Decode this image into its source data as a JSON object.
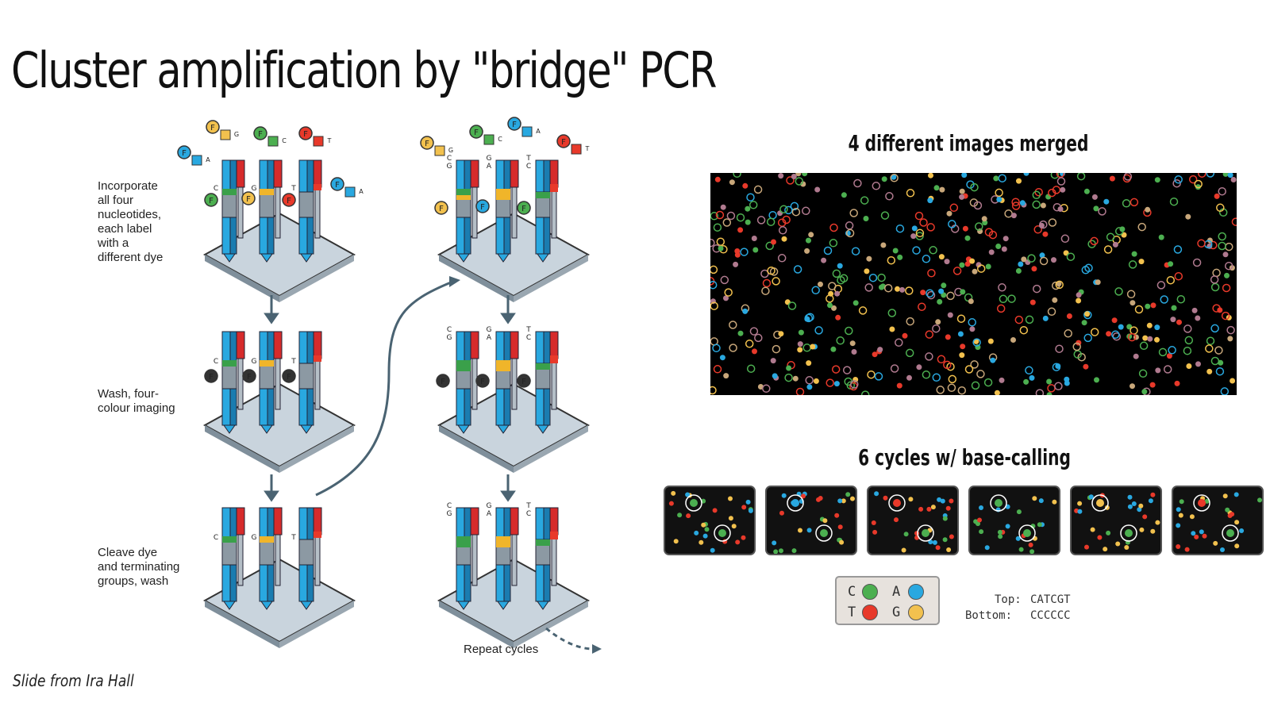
{
  "slide": {
    "title": "Cluster amplification by \"bridge\" PCR",
    "credit": "Slide from Ira Hall"
  },
  "steps": [
    {
      "label": "Incorporate\nall four\nnucleotides,\neach label\nwith a\ndifferent dye"
    },
    {
      "label": "Wash, four-\ncolour imaging"
    },
    {
      "label": "Cleave dye\nand terminating\ngroups, wash"
    }
  ],
  "repeat_label": "Repeat cycles",
  "nucleotide_codes": {
    "dye": "F",
    "bases": [
      "A",
      "C",
      "G",
      "T"
    ]
  },
  "strand_annotations": {
    "column1": [
      "C",
      "G",
      "T"
    ],
    "column2_left": "C\nG",
    "column2_middle": "G\nA",
    "column2_right": "T\nC"
  },
  "right_panel": {
    "merged_heading": "4 different images merged",
    "cycles_heading": "6 cycles w/ base-calling",
    "cycle_count": 6
  },
  "legend": {
    "items": [
      {
        "base": "C",
        "color": "#4caf50"
      },
      {
        "base": "A",
        "color": "#29a8e0"
      },
      {
        "base": "T",
        "color": "#e8392a"
      },
      {
        "base": "G",
        "color": "#f2c14e"
      }
    ]
  },
  "reads": {
    "top_label": "Top:",
    "top_value": "CATCGT",
    "bottom_label": "Bottom:",
    "bottom_value": "CCCCCC"
  },
  "colors": {
    "strand_blue": "#29a8e0",
    "strand_red": "#d62b2b",
    "strand_green": "#3aa04a",
    "strand_yellow": "#f0b52a",
    "plate": "#c9d4dd",
    "arrow": "#4a6372"
  }
}
